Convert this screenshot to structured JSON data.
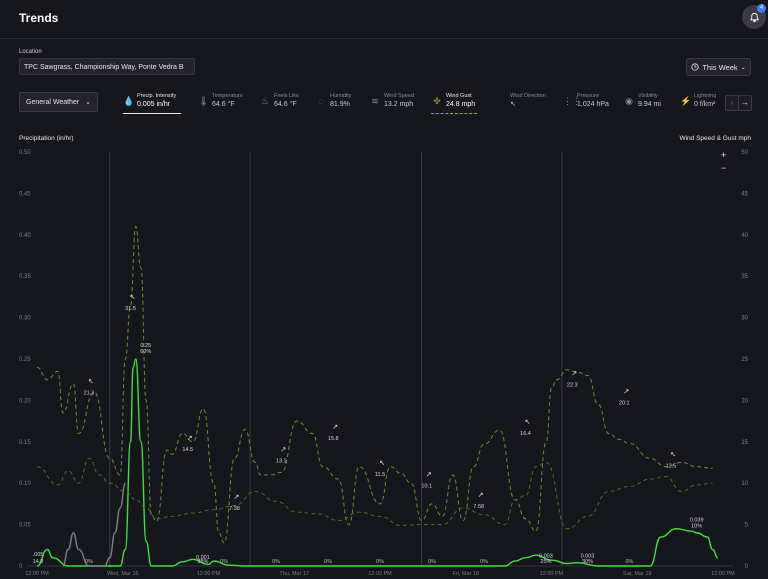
{
  "header": {
    "title": "Trends",
    "notification_count": "4"
  },
  "location": {
    "label": "Location",
    "value": "TPC Sawgrass, Championship Way, Ponte Vedra B"
  },
  "range": {
    "label": "This Week"
  },
  "dataset": {
    "label": "General Weather"
  },
  "metrics": [
    {
      "label": "Precip. Intensity",
      "value": "0.005 in/hr",
      "icon": "droplets-icon",
      "active": true
    },
    {
      "label": "Temperature",
      "value": "64.6 °F",
      "icon": "thermometer-icon"
    },
    {
      "label": "Feels Like",
      "value": "64.6 °F",
      "icon": "feels-like-icon"
    },
    {
      "label": "Humidity",
      "value": "81.9%",
      "icon": "humidity-icon"
    },
    {
      "label": "Wind Speed",
      "value": "13.2 mph",
      "icon": "wind-icon"
    },
    {
      "label": "Wind Gust",
      "value": "24.8 mph",
      "icon": "wind-gust-icon",
      "active": true
    },
    {
      "label": "Wind Direction",
      "value": "↖",
      "icon": "wind-direction-icon"
    },
    {
      "label": "Pressure",
      "value": "1,024 hPa",
      "icon": "pressure-icon"
    },
    {
      "label": "Visibility",
      "value": "9.94 mi",
      "icon": "eye-icon"
    },
    {
      "label": "Lightning",
      "value": "0 f/km²",
      "icon": "lightning-icon"
    }
  ],
  "colors": {
    "precip": "#3ee03b",
    "gust": "#6f8f2b",
    "wind": "#4f6b22",
    "accent": "#3d7cf5",
    "background": "#16161d"
  },
  "chart_data": {
    "type": "line",
    "left_axis_title": "Precipitation (in/hr)",
    "right_axis_title": "Wind Speed & Gust mph",
    "left_ticks": [
      "0.50",
      "0.45",
      "0.40",
      "0.35",
      "0.30",
      "0.25",
      "0.20",
      "0.15",
      "0.10",
      "0.05",
      "0"
    ],
    "right_ticks": [
      "50",
      "45",
      "40",
      "35",
      "30",
      "25",
      "20",
      "15",
      "10",
      "5",
      "0"
    ],
    "ylim_left": [
      0,
      0.5
    ],
    "ylim_right": [
      0,
      50
    ],
    "x_ticks": [
      "12:00 PM",
      "Wed, Mar 16",
      "12:00 PM",
      "Thu, Mar 17",
      "12:00 PM",
      "Fri, Mar 18",
      "12:00 PM",
      "Sat, Mar 19",
      "12:00 PM"
    ],
    "xlim": [
      0,
      132
    ],
    "grid": false,
    "series": [
      {
        "name": "Precip. Intensity",
        "axis": "left",
        "style": "solid",
        "color": "#3ee03b",
        "x": [
          0,
          2,
          3,
          6,
          10,
          16,
          17,
          18,
          18.5,
          19,
          20,
          21,
          22,
          26,
          28,
          30,
          33,
          34,
          37,
          40,
          50,
          90,
          92,
          94,
          96,
          99,
          102,
          104,
          108,
          118,
          120,
          123,
          126,
          127,
          129,
          130,
          131
        ],
        "y": [
          0,
          0.02,
          0.01,
          0,
          0,
          0,
          0.02,
          0.15,
          0.24,
          0.25,
          0.15,
          0.03,
          0,
          0,
          0.005,
          0.008,
          0.002,
          0.006,
          0.001,
          0,
          0,
          0,
          0.006,
          0.01,
          0.013,
          0.007,
          0.003,
          0.004,
          0,
          0,
          0.035,
          0.045,
          0.042,
          0.04,
          0.035,
          0.02,
          0.01
        ]
      },
      {
        "name": "Precip. Intensity (past)",
        "axis": "left",
        "style": "solid",
        "color": "#7b7f8a",
        "x": [
          5,
          6,
          7,
          8,
          10,
          13,
          14,
          15,
          16,
          17
        ],
        "y": [
          0,
          0.02,
          0.04,
          0.02,
          0,
          0,
          0.01,
          0.04,
          0.07,
          0.1
        ]
      },
      {
        "name": "Wind Gust",
        "axis": "right",
        "style": "dashed",
        "color": "#6f8f2b",
        "x": [
          0,
          2,
          4,
          5,
          7,
          8,
          11,
          14,
          16,
          17,
          18,
          19,
          20,
          21,
          22,
          23,
          25,
          26,
          28,
          30,
          32,
          34,
          35,
          36,
          38,
          40,
          42,
          43,
          45,
          47,
          50,
          53,
          55,
          58,
          60,
          62,
          66,
          68,
          70,
          72,
          74,
          76,
          78,
          80,
          82,
          84,
          86,
          89,
          92,
          94,
          96,
          98,
          99,
          100,
          102,
          104,
          106,
          108,
          110,
          112,
          114,
          118,
          121,
          124,
          127,
          130
        ],
        "y": [
          24,
          22.5,
          23.5,
          18.5,
          22,
          16,
          21,
          13,
          11,
          25,
          31.5,
          41,
          36,
          20,
          6.2,
          5.4,
          14,
          13.5,
          16,
          15,
          19,
          10,
          4,
          2.8,
          13,
          16.5,
          12.5,
          11,
          11,
          11.3,
          17.5,
          16,
          12,
          10.5,
          5,
          12,
          7.5,
          12,
          11.2,
          10,
          5.5,
          7.5,
          6,
          11,
          5.5,
          12,
          14.7,
          16.4,
          8,
          5.7,
          4.2,
          15,
          21.5,
          22.5,
          23.7,
          23.4,
          23,
          19.5,
          16,
          15.3,
          14.8,
          13,
          12,
          12.5,
          12,
          11.8
        ]
      },
      {
        "name": "Wind Speed",
        "axis": "right",
        "style": "dashed",
        "color": "#4f6b22",
        "x": [
          0,
          4,
          6,
          8,
          10,
          12,
          14,
          17,
          19,
          21,
          23,
          26,
          30,
          34,
          38,
          42,
          46,
          50,
          54,
          58,
          62,
          66,
          70,
          74,
          78,
          82,
          86,
          90,
          92,
          94,
          96,
          98,
          102,
          106,
          110,
          114,
          118,
          121,
          124,
          127,
          130
        ],
        "y": [
          12,
          9.8,
          11.5,
          10,
          13,
          11,
          10,
          9,
          8,
          7,
          5.7,
          6,
          6.4,
          6.8,
          7.3,
          9,
          7.8,
          6.5,
          6.3,
          5.5,
          6.5,
          6,
          4.9,
          5,
          5,
          7,
          6.2,
          5,
          8,
          8.5,
          12,
          12.5,
          4.5,
          6,
          9,
          9.6,
          10.5,
          10.8,
          9,
          9.8,
          10
        ]
      }
    ],
    "annotations": [
      {
        "axis": "left",
        "x": 0,
        "y": 0.005,
        "text": ".005"
      },
      {
        "axis": "left",
        "x": 0,
        "y": 0,
        "text": "14.8"
      },
      {
        "axis": "left",
        "x": 19,
        "y": 0.25,
        "text": "0.25"
      },
      {
        "axis": "left",
        "x": 19,
        "y": 0.25,
        "text": "60%"
      },
      {
        "axis": "left",
        "x": 30,
        "y": 0.001,
        "text": "0.001"
      },
      {
        "axis": "left",
        "x": 30,
        "y": 0,
        "text": "35%"
      },
      {
        "axis": "left",
        "x": 96,
        "y": 0.003,
        "text": "0.003"
      },
      {
        "axis": "left",
        "x": 96,
        "y": 0,
        "text": "25%"
      },
      {
        "axis": "left",
        "x": 104,
        "y": 0.003,
        "text": "0.003"
      },
      {
        "axis": "left",
        "x": 104,
        "y": 0,
        "text": "30%"
      },
      {
        "axis": "left",
        "x": 125,
        "y": 0.039,
        "text": "0.039"
      },
      {
        "axis": "left",
        "x": 125,
        "y": 0.039,
        "text": "10%"
      }
    ],
    "percent_labels": [
      {
        "x": 10,
        "text": "0%"
      },
      {
        "x": 36,
        "text": "0%"
      },
      {
        "x": 46,
        "text": "0%"
      },
      {
        "x": 56,
        "text": "0%"
      },
      {
        "x": 66,
        "text": "0%"
      },
      {
        "x": 76,
        "text": "0%"
      },
      {
        "x": 86,
        "text": "0%"
      },
      {
        "x": 114,
        "text": "0%"
      }
    ],
    "wind_labels": [
      {
        "x": 10,
        "y": 21.3,
        "text": "21.3",
        "dir": "↖"
      },
      {
        "x": 18,
        "y": 31.5,
        "text": "31.5",
        "dir": "↖"
      },
      {
        "x": 29,
        "y": 14.5,
        "text": "14.5",
        "dir": "↗"
      },
      {
        "x": 38,
        "y": 7.38,
        "text": "7.38",
        "dir": "↗"
      },
      {
        "x": 47,
        "y": 13.1,
        "text": "13.1",
        "dir": "↗"
      },
      {
        "x": 57,
        "y": 15.8,
        "text": "15.8",
        "dir": "↗"
      },
      {
        "x": 66,
        "y": 11.5,
        "text": "11.5",
        "dir": "↖"
      },
      {
        "x": 75,
        "y": 10.1,
        "text": "10.1",
        "dir": "↗"
      },
      {
        "x": 85,
        "y": 7.58,
        "text": "7.58",
        "dir": "↗"
      },
      {
        "x": 94,
        "y": 16.4,
        "text": "16.4",
        "dir": "↖"
      },
      {
        "x": 103,
        "y": 22.3,
        "text": "22.3",
        "dir": "↗"
      },
      {
        "x": 113,
        "y": 20.1,
        "text": "20.1",
        "dir": "↗"
      },
      {
        "x": 122,
        "y": 12.5,
        "text": "12.5",
        "dir": "↖"
      }
    ],
    "day_dividers": [
      14,
      41,
      74,
      101
    ]
  }
}
